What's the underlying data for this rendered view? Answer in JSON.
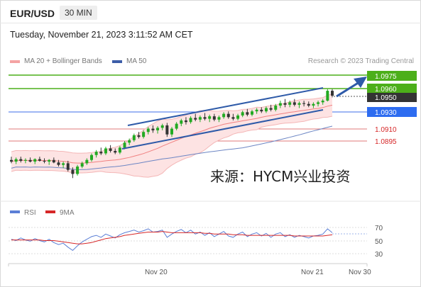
{
  "header": {
    "pair": "EUR/USD",
    "timeframe": "30 MIN",
    "datetime": "Tuesday, November 21, 2023 3:11:52 AM CET"
  },
  "legend": {
    "ma20": "MA 20 + Bollinger Bands",
    "ma50": "MA 50",
    "credit": "Research © 2023 Trading Central",
    "colors": {
      "ma20": "#f4a3a3",
      "ma50": "#3d5da8"
    }
  },
  "watermark": "来源：HYCM兴业投资",
  "rsi_legend": {
    "rsi": "RSI",
    "ma": "9MA",
    "colors": {
      "rsi": "#5b7fd6",
      "ma": "#d62728"
    }
  },
  "chart_data": [
    {
      "type": "candlestick",
      "pair": "EUR/USD",
      "timeframe": "30 MIN",
      "x_ticks": [
        "Nov 20",
        "Nov 21",
        "Nov 30"
      ],
      "current_price": 1.095,
      "ylim": [
        1.083,
        1.0985
      ],
      "candles": [
        {
          "o": 1.0872,
          "h": 1.0876,
          "l": 1.0868,
          "c": 1.087
        },
        {
          "o": 1.087,
          "h": 1.0875,
          "l": 1.0867,
          "c": 1.0873
        },
        {
          "o": 1.0873,
          "h": 1.0876,
          "l": 1.0869,
          "c": 1.0871
        },
        {
          "o": 1.0871,
          "h": 1.0874,
          "l": 1.0868,
          "c": 1.0872
        },
        {
          "o": 1.0872,
          "h": 1.0875,
          "l": 1.0869,
          "c": 1.087
        },
        {
          "o": 1.087,
          "h": 1.0874,
          "l": 1.0867,
          "c": 1.0873
        },
        {
          "o": 1.0873,
          "h": 1.0876,
          "l": 1.087,
          "c": 1.0871
        },
        {
          "o": 1.0871,
          "h": 1.0874,
          "l": 1.0868,
          "c": 1.087
        },
        {
          "o": 1.087,
          "h": 1.0873,
          "l": 1.0866,
          "c": 1.0872
        },
        {
          "o": 1.0872,
          "h": 1.0875,
          "l": 1.0868,
          "c": 1.0869
        },
        {
          "o": 1.0869,
          "h": 1.0872,
          "l": 1.0864,
          "c": 1.0866
        },
        {
          "o": 1.0866,
          "h": 1.087,
          "l": 1.0862,
          "c": 1.0868
        },
        {
          "o": 1.0868,
          "h": 1.0871,
          "l": 1.0858,
          "c": 1.086
        },
        {
          "o": 1.086,
          "h": 1.0863,
          "l": 1.085,
          "c": 1.0855
        },
        {
          "o": 1.0855,
          "h": 1.0866,
          "l": 1.0853,
          "c": 1.0864
        },
        {
          "o": 1.0864,
          "h": 1.087,
          "l": 1.0862,
          "c": 1.0868
        },
        {
          "o": 1.0868,
          "h": 1.0874,
          "l": 1.0866,
          "c": 1.0872
        },
        {
          "o": 1.0872,
          "h": 1.088,
          "l": 1.087,
          "c": 1.0878
        },
        {
          "o": 1.0878,
          "h": 1.0884,
          "l": 1.0875,
          "c": 1.0882
        },
        {
          "o": 1.0882,
          "h": 1.0887,
          "l": 1.0878,
          "c": 1.088
        },
        {
          "o": 1.088,
          "h": 1.0888,
          "l": 1.0878,
          "c": 1.0886
        },
        {
          "o": 1.0886,
          "h": 1.089,
          "l": 1.0881,
          "c": 1.0883
        },
        {
          "o": 1.0883,
          "h": 1.0886,
          "l": 1.0879,
          "c": 1.0881
        },
        {
          "o": 1.0881,
          "h": 1.0889,
          "l": 1.0879,
          "c": 1.0887
        },
        {
          "o": 1.0887,
          "h": 1.0895,
          "l": 1.0885,
          "c": 1.0893
        },
        {
          "o": 1.0893,
          "h": 1.0898,
          "l": 1.089,
          "c": 1.0896
        },
        {
          "o": 1.0896,
          "h": 1.0904,
          "l": 1.0894,
          "c": 1.0902
        },
        {
          "o": 1.0902,
          "h": 1.0906,
          "l": 1.0898,
          "c": 1.09
        },
        {
          "o": 1.09,
          "h": 1.0908,
          "l": 1.0898,
          "c": 1.0906
        },
        {
          "o": 1.0906,
          "h": 1.0912,
          "l": 1.0903,
          "c": 1.091
        },
        {
          "o": 1.091,
          "h": 1.0914,
          "l": 1.0905,
          "c": 1.0908
        },
        {
          "o": 1.0908,
          "h": 1.0913,
          "l": 1.0904,
          "c": 1.0911
        },
        {
          "o": 1.0911,
          "h": 1.0916,
          "l": 1.0908,
          "c": 1.0914
        },
        {
          "o": 1.0914,
          "h": 1.0917,
          "l": 1.09,
          "c": 1.0903
        },
        {
          "o": 1.0903,
          "h": 1.0912,
          "l": 1.09,
          "c": 1.091
        },
        {
          "o": 1.091,
          "h": 1.0918,
          "l": 1.0908,
          "c": 1.0916
        },
        {
          "o": 1.0916,
          "h": 1.0922,
          "l": 1.0913,
          "c": 1.092
        },
        {
          "o": 1.092,
          "h": 1.0924,
          "l": 1.0915,
          "c": 1.0918
        },
        {
          "o": 1.0918,
          "h": 1.0925,
          "l": 1.0916,
          "c": 1.0923
        },
        {
          "o": 1.0923,
          "h": 1.0928,
          "l": 1.0919,
          "c": 1.0921
        },
        {
          "o": 1.0921,
          "h": 1.0926,
          "l": 1.0918,
          "c": 1.0924
        },
        {
          "o": 1.0924,
          "h": 1.0929,
          "l": 1.092,
          "c": 1.0922
        },
        {
          "o": 1.0922,
          "h": 1.0927,
          "l": 1.0918,
          "c": 1.0925
        },
        {
          "o": 1.0925,
          "h": 1.0928,
          "l": 1.0919,
          "c": 1.0921
        },
        {
          "o": 1.0921,
          "h": 1.0926,
          "l": 1.0918,
          "c": 1.0924
        },
        {
          "o": 1.0924,
          "h": 1.093,
          "l": 1.0922,
          "c": 1.0928
        },
        {
          "o": 1.0928,
          "h": 1.0931,
          "l": 1.0922,
          "c": 1.0924
        },
        {
          "o": 1.0924,
          "h": 1.0928,
          "l": 1.092,
          "c": 1.0922
        },
        {
          "o": 1.0922,
          "h": 1.0928,
          "l": 1.092,
          "c": 1.0926
        },
        {
          "o": 1.0926,
          "h": 1.0932,
          "l": 1.0924,
          "c": 1.093
        },
        {
          "o": 1.093,
          "h": 1.0934,
          "l": 1.0925,
          "c": 1.0927
        },
        {
          "o": 1.0927,
          "h": 1.0933,
          "l": 1.0925,
          "c": 1.0931
        },
        {
          "o": 1.0931,
          "h": 1.0935,
          "l": 1.0928,
          "c": 1.0933
        },
        {
          "o": 1.0933,
          "h": 1.0936,
          "l": 1.0929,
          "c": 1.0931
        },
        {
          "o": 1.0931,
          "h": 1.0937,
          "l": 1.0929,
          "c": 1.0935
        },
        {
          "o": 1.0935,
          "h": 1.0939,
          "l": 1.0931,
          "c": 1.0933
        },
        {
          "o": 1.0933,
          "h": 1.094,
          "l": 1.0931,
          "c": 1.0938
        },
        {
          "o": 1.0938,
          "h": 1.0944,
          "l": 1.0935,
          "c": 1.0941
        },
        {
          "o": 1.0941,
          "h": 1.0946,
          "l": 1.0936,
          "c": 1.0939
        },
        {
          "o": 1.0939,
          "h": 1.0944,
          "l": 1.0936,
          "c": 1.0942
        },
        {
          "o": 1.0942,
          "h": 1.0946,
          "l": 1.0937,
          "c": 1.0939
        },
        {
          "o": 1.0939,
          "h": 1.0943,
          "l": 1.0935,
          "c": 1.0941
        },
        {
          "o": 1.0941,
          "h": 1.0944,
          "l": 1.0937,
          "c": 1.094
        },
        {
          "o": 1.094,
          "h": 1.0943,
          "l": 1.0936,
          "c": 1.0938
        },
        {
          "o": 1.0938,
          "h": 1.0942,
          "l": 1.0935,
          "c": 1.094
        },
        {
          "o": 1.094,
          "h": 1.0944,
          "l": 1.0937,
          "c": 1.0942
        },
        {
          "o": 1.0942,
          "h": 1.0946,
          "l": 1.0939,
          "c": 1.0944
        },
        {
          "o": 1.0944,
          "h": 1.0958,
          "l": 1.0943,
          "c": 1.0956
        },
        {
          "o": 1.0956,
          "h": 1.0958,
          "l": 1.0948,
          "c": 1.095
        }
      ]
    },
    {
      "type": "line",
      "name": "RSI",
      "series": [
        {
          "name": "RSI"
        },
        {
          "name": "9MA"
        }
      ],
      "y_ticks": [
        70,
        50,
        30
      ],
      "ylim": [
        20,
        80
      ],
      "rsi": [
        52,
        50,
        54,
        51,
        49,
        53,
        50,
        48,
        52,
        47,
        44,
        46,
        40,
        35,
        42,
        48,
        52,
        56,
        58,
        55,
        60,
        57,
        54,
        59,
        62,
        64,
        66,
        63,
        65,
        68,
        63,
        64,
        66,
        55,
        60,
        64,
        67,
        62,
        66,
        60,
        63,
        58,
        62,
        56,
        60,
        64,
        57,
        55,
        60,
        63,
        56,
        60,
        62,
        57,
        61,
        55,
        60,
        62,
        56,
        59,
        55,
        58,
        56,
        54,
        57,
        58,
        60,
        68,
        62
      ],
      "ma": [
        51,
        51,
        51,
        51,
        51,
        51,
        51,
        50,
        50,
        50,
        49,
        48,
        47,
        46,
        45,
        45,
        46,
        47,
        49,
        51,
        53,
        54,
        55,
        56,
        58,
        59,
        60,
        61,
        62,
        63,
        63,
        63,
        64,
        63,
        62,
        62,
        62,
        62,
        62,
        62,
        62,
        61,
        61,
        60,
        60,
        60,
        60,
        59,
        59,
        59,
        58,
        58,
        58,
        58,
        58,
        58,
        58,
        58,
        58,
        58,
        57,
        57,
        57,
        57,
        57,
        57,
        57,
        58,
        59
      ]
    }
  ],
  "levels": [
    {
      "value": "1.0975",
      "style": "green-box"
    },
    {
      "value": "1.0960",
      "style": "green-box"
    },
    {
      "value": "1.0950",
      "style": "current"
    },
    {
      "value": "1.0930",
      "style": "blue-box"
    },
    {
      "value": "1.0910",
      "style": "red-text"
    },
    {
      "value": "1.0895",
      "style": "red-text"
    }
  ]
}
